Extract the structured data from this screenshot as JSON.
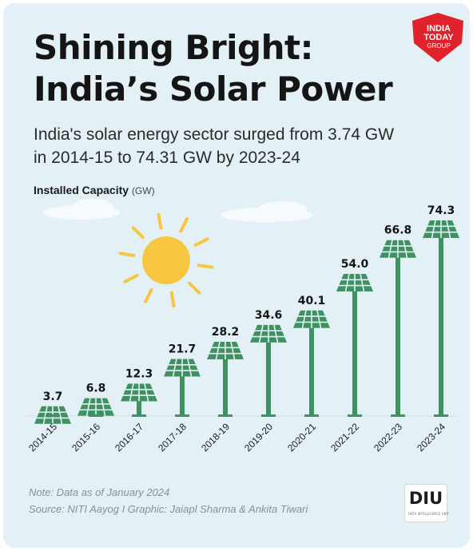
{
  "title_line1": "Shining Bright:",
  "title_line2": "India’s Solar Power",
  "subtitle_line1": "India's solar energy sector surged from 3.74 GW",
  "subtitle_line2": "in 2014-15 to 74.31 GW by 2023-24",
  "ylabel_main": "Installed Capacity",
  "ylabel_unit": "(GW)",
  "note": "Note: Data as of January 2024",
  "source": "Source: NITI Aayog  I Graphic: Jaiapl Sharma & Ankita Tiwari",
  "logo": {
    "line1": "INDIA",
    "line2": "TODAY",
    "line3": "GROUP",
    "color": "#e0232b"
  },
  "diu_badge": {
    "text": "DIU",
    "tagline": "DATA INTELLIGENCE UNIT"
  },
  "colors": {
    "bar": "#3f9161",
    "panel_light": "#5aa877",
    "sun": "#f7c640",
    "background": "#e3f1f6",
    "text": "#151515"
  },
  "chart_data": {
    "type": "bar",
    "categories": [
      "2014-15",
      "2015-16",
      "2016-17",
      "2017-18",
      "2018-19",
      "2019-20",
      "2020-21",
      "2021-22",
      "2022-23",
      "2023-24"
    ],
    "values": [
      3.7,
      6.8,
      12.3,
      21.7,
      28.2,
      34.6,
      40.1,
      54.0,
      66.8,
      74.3
    ],
    "value_labels": [
      "3.7",
      "6.8",
      "12.3",
      "21.7",
      "28.2",
      "34.6",
      "40.1",
      "54.0",
      "66.8",
      "74.3"
    ],
    "title": "Shining Bright: India’s Solar Power",
    "ylabel": "Installed Capacity (GW)",
    "xlabel": "",
    "ylim": [
      0,
      80
    ],
    "grid": false,
    "legend": "none"
  }
}
